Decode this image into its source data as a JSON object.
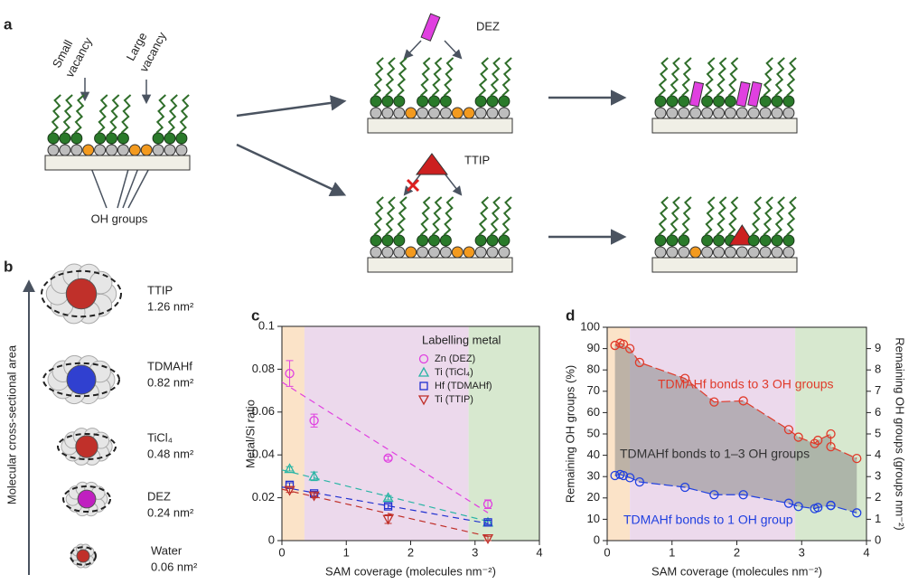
{
  "panels": {
    "a": {
      "label": "a",
      "small_vacancy": [
        "Small",
        "vacancy"
      ],
      "large_vacancy": [
        "Large",
        "vacancy"
      ],
      "oh_groups": "OH groups",
      "dez": "DEZ",
      "ttip": "TTIP"
    },
    "b": {
      "label": "b",
      "axis_label": "Molecular cross-sectional area",
      "molecules": [
        {
          "name": "TTIP",
          "area": "1.26 nm²"
        },
        {
          "name": "TDMAHf",
          "area": "0.82 nm²"
        },
        {
          "name": "TiCl₄",
          "area": "0.48 nm²"
        },
        {
          "name": "DEZ",
          "area": "0.24 nm²"
        },
        {
          "name": "Water",
          "area": "0.06 nm²"
        }
      ]
    }
  },
  "chart_data": [
    {
      "type": "scatter",
      "panel_label": "c",
      "x_label": "SAM coverage (molecules nm⁻²)",
      "y_label": "Metal/Si ratio",
      "xlim": [
        0,
        4
      ],
      "xticks": [
        0,
        1,
        2,
        3,
        4
      ],
      "ylim": [
        0,
        0.1
      ],
      "yticks": [
        0,
        0.02,
        0.04,
        0.06,
        0.08,
        0.1
      ],
      "legend_title": "Labelling metal",
      "legend": "upper right",
      "regions": [
        {
          "from": 0,
          "to": 0.35,
          "color": "#fbe3c8"
        },
        {
          "from": 0.35,
          "to": 2.9,
          "color": "#ecd9ec"
        },
        {
          "from": 2.9,
          "to": 4,
          "color": "#d7e8cf"
        }
      ],
      "series": [
        {
          "name": "Zn (DEZ)",
          "color": "#e040e0",
          "marker": "circle",
          "x": [
            0.12,
            0.5,
            1.65,
            3.2
          ],
          "values": [
            0.078,
            0.056,
            0.0385,
            0.017
          ],
          "errors": [
            0.006,
            0.003,
            0.001,
            0.002
          ],
          "fit_x": [
            0,
            3.2
          ],
          "fit_y": [
            0.074,
            0.013
          ]
        },
        {
          "name": "Ti (TiCl₄)",
          "color": "#2ab5a5",
          "marker": "triangle",
          "x": [
            0.12,
            0.5,
            1.65,
            3.2
          ],
          "values": [
            0.0335,
            0.03,
            0.02,
            0.0085
          ],
          "errors": [
            0.001,
            0.002,
            0.001,
            0.001
          ],
          "fit_x": [
            0,
            3.2
          ],
          "fit_y": [
            0.033,
            0.009
          ]
        },
        {
          "name": "Hf (TDMAHf)",
          "color": "#2030d0",
          "marker": "square",
          "x": [
            0.12,
            0.5,
            1.65,
            3.2
          ],
          "values": [
            0.026,
            0.022,
            0.016,
            0.0085
          ],
          "errors": [
            0.001,
            0.001,
            0.001,
            0.001
          ],
          "fit_x": [
            0,
            3.2
          ],
          "fit_y": [
            0.025,
            0.008
          ]
        },
        {
          "name": "Ti (TTIP)",
          "color": "#c0302a",
          "marker": "triangle-down",
          "x": [
            0.12,
            0.5,
            1.65,
            3.2
          ],
          "values": [
            0.0235,
            0.021,
            0.01,
            0.001
          ],
          "errors": [
            0.001,
            0.001,
            0.002,
            0.001
          ],
          "fit_x": [
            0,
            3.2
          ],
          "fit_y": [
            0.024,
            0.002
          ]
        }
      ]
    },
    {
      "type": "line",
      "panel_label": "d",
      "x_label": "SAM coverage (molecules nm⁻²)",
      "y_label": "Remaining OH groups (%)",
      "y2_label": "Remaining OH groups (groups nm⁻²)",
      "xlim": [
        0,
        4
      ],
      "xticks": [
        0,
        1,
        2,
        3,
        4
      ],
      "ylim": [
        0,
        100
      ],
      "yticks": [
        0,
        10,
        20,
        30,
        40,
        50,
        60,
        70,
        80,
        90,
        100
      ],
      "y2lim": [
        0,
        10
      ],
      "y2ticks": [
        0,
        1,
        2,
        3,
        4,
        5,
        6,
        7,
        8,
        9
      ],
      "regions": [
        {
          "from": 0,
          "to": 0.35,
          "color": "#fbe3c8"
        },
        {
          "from": 0.35,
          "to": 2.9,
          "color": "#ecd9ec"
        },
        {
          "from": 2.9,
          "to": 4,
          "color": "#d7e8cf"
        }
      ],
      "fill_between": true,
      "fill_color": "#8a8a8a",
      "x": [
        0.12,
        0.2,
        0.25,
        0.35,
        0.5,
        1.2,
        1.65,
        2.1,
        2.8,
        2.95,
        3.2,
        3.25,
        3.45,
        3.45,
        3.85
      ],
      "series": [
        {
          "color": "#e03a2a",
          "values": [
            91.5,
            92.5,
            92,
            90,
            83.5,
            76,
            65,
            65.5,
            52,
            48.5,
            45.5,
            47,
            50,
            44,
            38.5
          ]
        },
        {
          "color": "#2040e0",
          "values": [
            30.5,
            31,
            30.5,
            29.5,
            27.5,
            25,
            21.5,
            21.5,
            17.5,
            16,
            15,
            15.5,
            16.5,
            16.5,
            13
          ]
        }
      ],
      "annotations": [
        {
          "text": "TDMAHf bonds to 3 OH groups",
          "color": "#e03a2a"
        },
        {
          "text": "TDMAHf bonds to 1–3 OH groups",
          "color": "#333333"
        },
        {
          "text": "TDMAHf bonds to 1 OH group",
          "color": "#2040e0"
        }
      ]
    }
  ]
}
